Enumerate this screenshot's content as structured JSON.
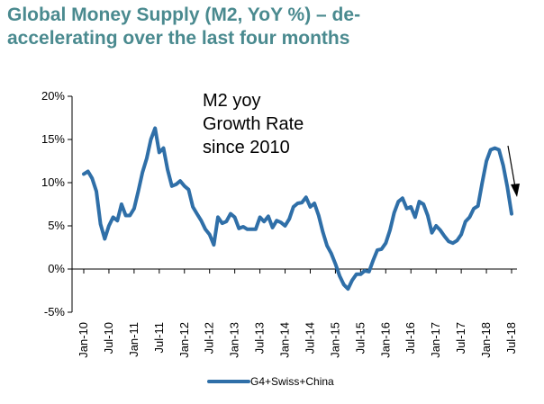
{
  "title": {
    "line1": "Global Money Supply (M2, YoY %) – de-",
    "line2": "accelerating over the last four months",
    "color": "#4a8a8f"
  },
  "chart_data": {
    "type": "line",
    "annotation": [
      "M2 yoy",
      "Growth Rate",
      "since 2010"
    ],
    "series": [
      {
        "name": "G4+Swiss+China",
        "color": "#2f6fa8",
        "x": [
          "2010-01",
          "2010-02",
          "2010-03",
          "2010-04",
          "2010-05",
          "2010-06",
          "2010-07",
          "2010-08",
          "2010-09",
          "2010-10",
          "2010-11",
          "2010-12",
          "2011-01",
          "2011-02",
          "2011-03",
          "2011-04",
          "2011-05",
          "2011-06",
          "2011-07",
          "2011-08",
          "2011-09",
          "2011-10",
          "2011-11",
          "2011-12",
          "2012-01",
          "2012-02",
          "2012-03",
          "2012-04",
          "2012-05",
          "2012-06",
          "2012-07",
          "2012-08",
          "2012-09",
          "2012-10",
          "2012-11",
          "2012-12",
          "2013-01",
          "2013-02",
          "2013-03",
          "2013-04",
          "2013-05",
          "2013-06",
          "2013-07",
          "2013-08",
          "2013-09",
          "2013-10",
          "2013-11",
          "2013-12",
          "2014-01",
          "2014-02",
          "2014-03",
          "2014-04",
          "2014-05",
          "2014-06",
          "2014-07",
          "2014-08",
          "2014-09",
          "2014-10",
          "2014-11",
          "2014-12",
          "2015-01",
          "2015-02",
          "2015-03",
          "2015-04",
          "2015-05",
          "2015-06",
          "2015-07",
          "2015-08",
          "2015-09",
          "2015-10",
          "2015-11",
          "2015-12",
          "2016-01",
          "2016-02",
          "2016-03",
          "2016-04",
          "2016-05",
          "2016-06",
          "2016-07",
          "2016-08",
          "2016-09",
          "2016-10",
          "2016-11",
          "2016-12",
          "2017-01",
          "2017-02",
          "2017-03",
          "2017-04",
          "2017-05",
          "2017-06",
          "2017-07",
          "2017-08",
          "2017-09",
          "2017-10",
          "2017-11",
          "2017-12",
          "2018-01",
          "2018-02",
          "2018-03",
          "2018-04",
          "2018-05",
          "2018-06",
          "2018-07"
        ],
        "values": [
          11.0,
          11.3,
          10.5,
          9.0,
          5.2,
          3.5,
          5.0,
          6.0,
          5.6,
          7.5,
          6.2,
          6.2,
          7.0,
          9.0,
          11.2,
          12.8,
          15.0,
          16.3,
          13.5,
          14.0,
          11.5,
          9.6,
          9.8,
          10.2,
          9.6,
          9.2,
          7.2,
          6.4,
          5.6,
          4.6,
          4.0,
          2.8,
          6.0,
          5.3,
          5.5,
          6.4,
          6.0,
          4.7,
          4.9,
          4.6,
          4.6,
          4.6,
          6.0,
          5.5,
          6.1,
          4.8,
          5.6,
          5.4,
          5.0,
          5.8,
          7.2,
          7.6,
          7.7,
          8.3,
          7.2,
          7.6,
          6.2,
          4.3,
          2.7,
          1.8,
          0.6,
          -0.8,
          -1.8,
          -2.3,
          -1.3,
          -0.6,
          -0.6,
          -0.2,
          -0.3,
          1.0,
          2.2,
          2.3,
          3.0,
          4.5,
          6.5,
          7.8,
          8.2,
          7.0,
          7.2,
          6.0,
          7.8,
          7.5,
          6.2,
          4.2,
          5.0,
          4.5,
          3.8,
          3.2,
          3.0,
          3.3,
          4.0,
          5.5,
          6.0,
          7.0,
          7.3,
          10.0,
          12.5,
          13.8,
          14.0,
          13.8,
          12.0,
          9.5,
          6.4
        ]
      }
    ],
    "y_ticks": [
      "20%",
      "15%",
      "10%",
      "5%",
      "0%",
      "-5%"
    ],
    "y_tick_values": [
      20,
      15,
      10,
      5,
      0,
      -5
    ],
    "ylim": [
      -5,
      20
    ],
    "x_ticks": [
      "Jan-10",
      "Jul-10",
      "Jan-11",
      "Jul-11",
      "Jan-12",
      "Jul-12",
      "Jan-13",
      "Jul-13",
      "Jan-14",
      "Jul-14",
      "Jan-15",
      "Jul-15",
      "Jan-16",
      "Jul-16",
      "Jan-17",
      "Jul-17",
      "Jan-18",
      "Jul-18"
    ],
    "x_tick_dates": [
      "2010-01",
      "2010-07",
      "2011-01",
      "2011-07",
      "2012-01",
      "2012-07",
      "2013-01",
      "2013-07",
      "2014-01",
      "2014-07",
      "2015-01",
      "2015-07",
      "2016-01",
      "2016-07",
      "2017-01",
      "2017-07",
      "2018-01",
      "2018-07"
    ],
    "grid": false,
    "legend": "bottom"
  }
}
